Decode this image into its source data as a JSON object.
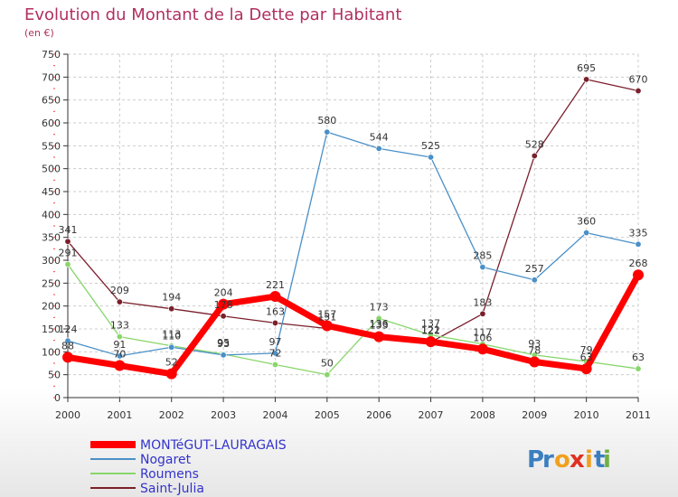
{
  "chart_data": {
    "type": "line",
    "title": "Evolution du Montant de la Dette par Habitant",
    "subtitle": "(en €)",
    "xlabel": "",
    "ylabel": "",
    "x": [
      "2000",
      "2001",
      "2002",
      "2003",
      "2004",
      "2005",
      "2006",
      "2007",
      "2008",
      "2009",
      "2010",
      "2011"
    ],
    "ylim": [
      0,
      750
    ],
    "yticks": [
      0,
      50,
      100,
      150,
      200,
      250,
      300,
      350,
      400,
      450,
      500,
      550,
      600,
      650,
      700,
      750
    ],
    "grid": true,
    "legend": "bottom-left",
    "series": [
      {
        "name": "Saint-Julia",
        "color": "#7a1f2b",
        "values": [
          341,
          209,
          194,
          178,
          163,
          151,
          136,
          121,
          183,
          528,
          695,
          670
        ]
      },
      {
        "name": "Roumens",
        "color": "#88d66b",
        "values": [
          291,
          133,
          113,
          95,
          72,
          50,
          173,
          137,
          117,
          93,
          79,
          63
        ]
      },
      {
        "name": "Nogaret",
        "color": "#4a90c8",
        "values": [
          124,
          91,
          110,
          93,
          97,
          580,
          544,
          525,
          285,
          257,
          360,
          335
        ]
      },
      {
        "name": "MONTéGUT-LAURAGAIS",
        "color": "#ff0000",
        "values": [
          88,
          70,
          52,
          204,
          221,
          157,
          133,
          122,
          106,
          78,
          63,
          268
        ]
      }
    ]
  },
  "legend_items": [
    {
      "name": "MONTéGUT-LAURAGAIS",
      "color": "#ff0000"
    },
    {
      "name": "Nogaret",
      "color": "#4a90c8"
    },
    {
      "name": "Roumens",
      "color": "#88d66b"
    },
    {
      "name": "Saint-Julia",
      "color": "#7a1f2b"
    }
  ],
  "logo": {
    "letters": [
      "P",
      "r",
      "o",
      "x",
      "i",
      "t",
      "i"
    ],
    "colors": [
      "#3a7fc0",
      "#3a7fc0",
      "#f0a020",
      "#e03020",
      "#f0a020",
      "#3a7fc0",
      "#70b040"
    ]
  }
}
